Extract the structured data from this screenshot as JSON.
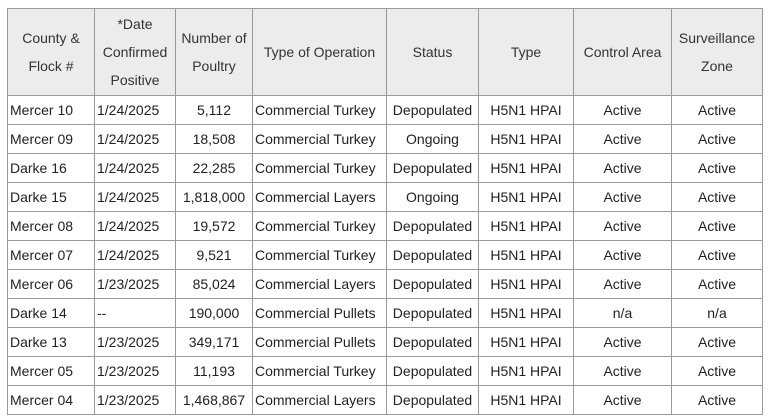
{
  "table": {
    "header": [
      "County & Flock #",
      "*Date Confirmed Positive",
      "Number of Poultry",
      "Type of Operation",
      "Status",
      "Type",
      "Control Area",
      "Surveillance Zone"
    ],
    "rows": [
      [
        "Mercer 10",
        "1/24/2025",
        "5,112",
        "Commercial Turkey",
        "Depopulated",
        "H5N1 HPAI",
        "Active",
        "Active"
      ],
      [
        "Mercer 09",
        "1/24/2025",
        "18,508",
        "Commercial Turkey",
        "Ongoing",
        "H5N1 HPAI",
        "Active",
        "Active"
      ],
      [
        "Darke 16",
        "1/24/2025",
        "22,285",
        "Commercial Turkey",
        "Depopulated",
        "H5N1 HPAI",
        "Active",
        "Active"
      ],
      [
        "Darke 15",
        "1/24/2025",
        "1,818,000",
        "Commercial Layers",
        "Ongoing",
        "H5N1 HPAI",
        "Active",
        "Active"
      ],
      [
        "Mercer 08",
        "1/24/2025",
        "19,572",
        "Commercial Turkey",
        "Depopulated",
        "H5N1 HPAI",
        "Active",
        "Active"
      ],
      [
        "Mercer 07",
        "1/24/2025",
        "9,521",
        "Commercial Turkey",
        "Depopulated",
        "H5N1 HPAI",
        "Active",
        "Active"
      ],
      [
        "Mercer 06",
        "1/23/2025",
        "85,024",
        "Commercial Layers",
        "Depopulated",
        "H5N1 HPAI",
        "Active",
        "Active"
      ],
      [
        "Darke 14",
        "--",
        "190,000",
        "Commercial Pullets",
        "Depopulated",
        "H5N1 HPAI",
        "n/a",
        "n/a"
      ],
      [
        "Darke 13",
        "1/23/2025",
        "349,171",
        "Commercial Pullets",
        "Depopulated",
        "H5N1 HPAI",
        "Active",
        "Active"
      ],
      [
        "Mercer 05",
        "1/23/2025",
        "11,193",
        "Commercial Turkey",
        "Depopulated",
        "H5N1 HPAI",
        "Active",
        "Active"
      ],
      [
        "Mercer 04",
        "1/23/2025",
        "1,468,867",
        "Commercial Layers",
        "Depopulated",
        "H5N1 HPAI",
        "Active",
        "Active"
      ]
    ]
  }
}
